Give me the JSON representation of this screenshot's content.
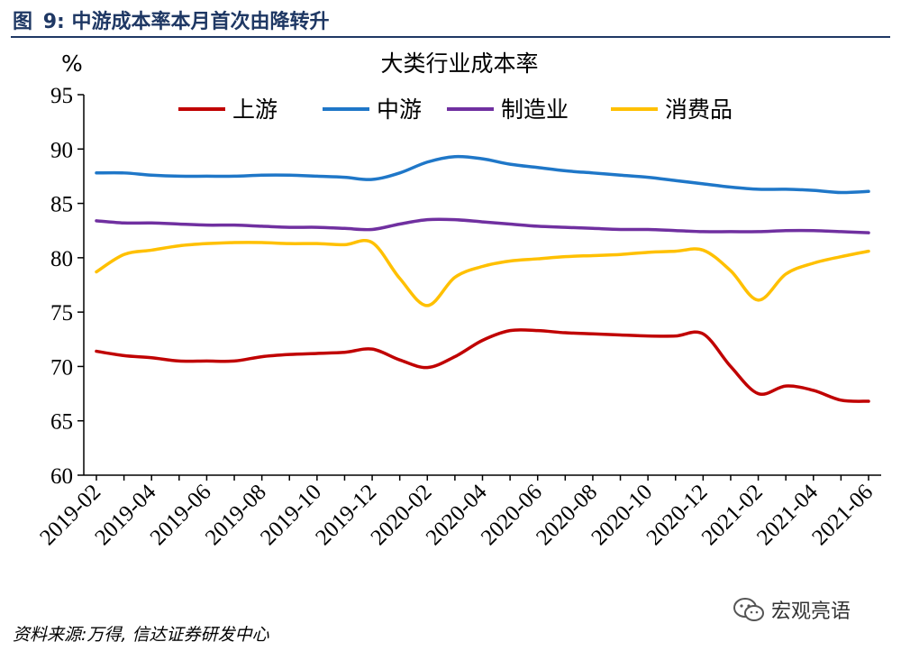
{
  "figure": {
    "label": "图",
    "number": "9:",
    "caption": "中游成本率本月首次由降转升"
  },
  "source_text": "资料来源:万得, 信达证券研发中心",
  "watermark": {
    "text": "宏观亮语",
    "icon": "wechat-icon"
  },
  "chart_data": {
    "type": "line",
    "title": "大类行业成本率",
    "unit": "%",
    "ylim": [
      60,
      95
    ],
    "yticks": [
      60,
      65,
      70,
      75,
      80,
      85,
      90,
      95
    ],
    "x_tick_labels": [
      "2019-02",
      "2019-04",
      "2019-06",
      "2019-08",
      "2019-10",
      "2019-12",
      "2020-02",
      "2020-04",
      "2020-06",
      "2020-08",
      "2020-10",
      "2020-12",
      "2021-02",
      "2021-04",
      "2021-06"
    ],
    "x": [
      "2019-02",
      "2019-03",
      "2019-04",
      "2019-05",
      "2019-06",
      "2019-07",
      "2019-08",
      "2019-09",
      "2019-10",
      "2019-11",
      "2019-12",
      "2020-01",
      "2020-02",
      "2020-03",
      "2020-04",
      "2020-05",
      "2020-06",
      "2020-07",
      "2020-08",
      "2020-09",
      "2020-10",
      "2020-11",
      "2020-12",
      "2021-01",
      "2021-02",
      "2021-03",
      "2021-04",
      "2021-05",
      "2021-06"
    ],
    "grid": false,
    "legend_position": "top",
    "series": [
      {
        "name": "上游",
        "color": "#c00000",
        "values": [
          71.4,
          71.0,
          70.8,
          70.5,
          70.5,
          70.5,
          70.9,
          71.1,
          71.2,
          71.3,
          71.6,
          70.6,
          69.9,
          70.9,
          72.4,
          73.3,
          73.3,
          73.1,
          73.0,
          72.9,
          72.8,
          72.8,
          73.0,
          70.0,
          67.5,
          68.2,
          67.8,
          66.9,
          66.8
        ]
      },
      {
        "name": "中游",
        "color": "#1f77c8",
        "values": [
          87.8,
          87.8,
          87.6,
          87.5,
          87.5,
          87.5,
          87.6,
          87.6,
          87.5,
          87.4,
          87.2,
          87.8,
          88.8,
          89.3,
          89.1,
          88.6,
          88.3,
          88.0,
          87.8,
          87.6,
          87.4,
          87.1,
          86.8,
          86.5,
          86.3,
          86.3,
          86.2,
          86.0,
          86.1
        ]
      },
      {
        "name": "制造业",
        "color": "#7030a0",
        "values": [
          83.4,
          83.2,
          83.2,
          83.1,
          83.0,
          83.0,
          82.9,
          82.8,
          82.8,
          82.7,
          82.6,
          83.1,
          83.5,
          83.5,
          83.3,
          83.1,
          82.9,
          82.8,
          82.7,
          82.6,
          82.6,
          82.5,
          82.4,
          82.4,
          82.4,
          82.5,
          82.5,
          82.4,
          82.3
        ]
      },
      {
        "name": "消费品",
        "color": "#ffc000",
        "values": [
          78.7,
          80.3,
          80.7,
          81.1,
          81.3,
          81.4,
          81.4,
          81.3,
          81.3,
          81.2,
          81.4,
          78.1,
          75.6,
          78.2,
          79.2,
          79.7,
          79.9,
          80.1,
          80.2,
          80.3,
          80.5,
          80.6,
          80.7,
          78.8,
          76.1,
          78.5,
          79.5,
          80.1,
          80.6
        ]
      }
    ]
  }
}
